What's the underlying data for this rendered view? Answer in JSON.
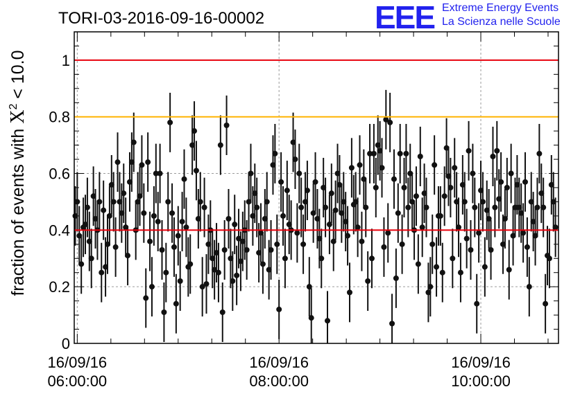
{
  "logo": {
    "mark": "EEE",
    "line1": "Extreme Energy Events",
    "line2": "La Scienza nelle Scuole"
  },
  "chart_data": {
    "type": "scatter",
    "title": "TORI-03-2016-09-16-00002",
    "ylabel": "fraction of events with X² < 10.0",
    "ylabel_parts": {
      "pre": "fraction of events with ",
      "sym": "X",
      "sup": "2",
      "post": " < 10.0"
    },
    "xlabel": "",
    "x_range_hours": [
      5.97,
      10.77
    ],
    "ylim": [
      0,
      1.1
    ],
    "y_ticks": [
      0,
      0.2,
      0.4,
      0.6,
      0.8,
      1
    ],
    "y_tick_labels": [
      "0",
      "0.2",
      "0.4",
      "0.6",
      "0.8",
      "1"
    ],
    "x_ticks": [
      {
        "hour": 6,
        "date": "16/09/16",
        "time": "06:00:00"
      },
      {
        "hour": 8,
        "date": "16/09/16",
        "time": "08:00:00"
      },
      {
        "hour": 10,
        "date": "16/09/16",
        "time": "10:00:00"
      }
    ],
    "grid": true,
    "reference_lines": [
      {
        "y": 1.0,
        "color": "#e8000b"
      },
      {
        "y": 0.8,
        "color": "#ffb300"
      },
      {
        "y": 0.4,
        "color": "#e8000b"
      }
    ],
    "series": [
      {
        "marker": "circle",
        "color": "#111111",
        "error_bar": 0.105,
        "points": [
          [
            5.98,
            0.45
          ],
          [
            6.0,
            0.5
          ],
          [
            6.02,
            0.38
          ],
          [
            6.04,
            0.28
          ],
          [
            6.06,
            0.41
          ],
          [
            6.08,
            0.42
          ],
          [
            6.1,
            0.48
          ],
          [
            6.12,
            0.36
          ],
          [
            6.14,
            0.3
          ],
          [
            6.16,
            0.52
          ],
          [
            6.18,
            0.44
          ],
          [
            6.2,
            0.4
          ],
          [
            6.22,
            0.5
          ],
          [
            6.24,
            0.25
          ],
          [
            6.26,
            0.47
          ],
          [
            6.28,
            0.27
          ],
          [
            6.3,
            0.35
          ],
          [
            6.32,
            0.45
          ],
          [
            6.34,
            0.56
          ],
          [
            6.36,
            0.5
          ],
          [
            6.38,
            0.34
          ],
          [
            6.4,
            0.64
          ],
          [
            6.42,
            0.5
          ],
          [
            6.44,
            0.46
          ],
          [
            6.46,
            0.53
          ],
          [
            6.48,
            0.41
          ],
          [
            6.5,
            0.31
          ],
          [
            6.52,
            0.57
          ],
          [
            6.54,
            0.64
          ],
          [
            6.56,
            0.71
          ],
          [
            6.58,
            0.4
          ],
          [
            6.6,
            0.5
          ],
          [
            6.62,
            0.52
          ],
          [
            6.64,
            0.63
          ],
          [
            6.66,
            0.46
          ],
          [
            6.68,
            0.16
          ],
          [
            6.7,
            0.64
          ],
          [
            6.72,
            0.36
          ],
          [
            6.74,
            0.2
          ],
          [
            6.76,
            0.45
          ],
          [
            6.78,
            0.6
          ],
          [
            6.8,
            0.43
          ],
          [
            6.82,
            0.6
          ],
          [
            6.84,
            0.33
          ],
          [
            6.86,
            0.11
          ],
          [
            6.88,
            0.25
          ],
          [
            6.9,
            0.5
          ],
          [
            6.92,
            0.78
          ],
          [
            6.94,
            0.46
          ],
          [
            6.96,
            0.34
          ],
          [
            6.98,
            0.14
          ],
          [
            7.0,
            0.38
          ],
          [
            7.02,
            0.22
          ],
          [
            7.04,
            0.43
          ],
          [
            7.06,
            0.58
          ],
          [
            7.08,
            0.41
          ],
          [
            7.1,
            0.27
          ],
          [
            7.12,
            0.28
          ],
          [
            7.14,
            0.7
          ],
          [
            7.16,
            0.75
          ],
          [
            7.18,
            0.61
          ],
          [
            7.2,
            0.44
          ],
          [
            7.22,
            0.5
          ],
          [
            7.24,
            0.2
          ],
          [
            7.26,
            0.48
          ],
          [
            7.28,
            0.21
          ],
          [
            7.3,
            0.35
          ],
          [
            7.32,
            0.4
          ],
          [
            7.34,
            0.3
          ],
          [
            7.36,
            0.26
          ],
          [
            7.38,
            0.32
          ],
          [
            7.4,
            0.25
          ],
          [
            7.42,
            0.7
          ],
          [
            7.44,
            0.11
          ],
          [
            7.46,
            0.33
          ],
          [
            7.48,
            0.77
          ],
          [
            7.5,
            0.44
          ],
          [
            7.52,
            0.3
          ],
          [
            7.54,
            0.22
          ],
          [
            7.56,
            0.42
          ],
          [
            7.58,
            0.24
          ],
          [
            7.6,
            0.37
          ],
          [
            7.62,
            0.29
          ],
          [
            7.64,
            0.36
          ],
          [
            7.66,
            0.4
          ],
          [
            7.68,
            0.33
          ],
          [
            7.7,
            0.5
          ],
          [
            7.72,
            0.6
          ],
          [
            7.74,
            0.45
          ],
          [
            7.76,
            0.53
          ],
          [
            7.78,
            0.48
          ],
          [
            7.8,
            0.32
          ],
          [
            7.82,
            0.39
          ],
          [
            7.84,
            0.28
          ],
          [
            7.86,
            0.44
          ],
          [
            7.88,
            0.5
          ],
          [
            7.9,
            0.26
          ],
          [
            7.92,
            0.33
          ],
          [
            7.94,
            0.63
          ],
          [
            7.96,
            0.67
          ],
          [
            7.98,
            0.35
          ],
          [
            8.0,
            0.12
          ],
          [
            8.02,
            0.57
          ],
          [
            8.04,
            0.45
          ],
          [
            8.06,
            0.3
          ],
          [
            8.08,
            0.54
          ],
          [
            8.1,
            0.42
          ],
          [
            8.12,
            0.4
          ],
          [
            8.14,
            0.71
          ],
          [
            8.16,
            0.65
          ],
          [
            8.18,
            0.39
          ],
          [
            8.2,
            0.6
          ],
          [
            8.22,
            0.48
          ],
          [
            8.24,
            0.35
          ],
          [
            8.26,
            0.5
          ],
          [
            8.28,
            0.54
          ],
          [
            8.3,
            0.2
          ],
          [
            8.32,
            0.09
          ],
          [
            8.34,
            0.46
          ],
          [
            8.36,
            0.57
          ],
          [
            8.38,
            0.44
          ],
          [
            8.4,
            0.37
          ],
          [
            8.42,
            0.3
          ],
          [
            8.44,
            0.55
          ],
          [
            8.46,
            0.48
          ],
          [
            8.48,
            0.08
          ],
          [
            8.5,
            0.42
          ],
          [
            8.52,
            0.53
          ],
          [
            8.54,
            0.36
          ],
          [
            8.56,
            0.47
          ],
          [
            8.58,
            0.6
          ],
          [
            8.6,
            0.56
          ],
          [
            8.62,
            0.46
          ],
          [
            8.64,
            0.5
          ],
          [
            8.66,
            0.43
          ],
          [
            8.68,
            0.38
          ],
          [
            8.7,
            0.18
          ],
          [
            8.72,
            0.62
          ],
          [
            8.74,
            0.49
          ],
          [
            8.76,
            0.5
          ],
          [
            8.78,
            0.41
          ],
          [
            8.8,
            0.63
          ],
          [
            8.82,
            0.36
          ],
          [
            8.84,
            0.58
          ],
          [
            8.86,
            0.48
          ],
          [
            8.88,
            0.22
          ],
          [
            8.9,
            0.67
          ],
          [
            8.92,
            0.3
          ],
          [
            8.94,
            0.67
          ],
          [
            8.96,
            0.55
          ],
          [
            8.98,
            0.7
          ],
          [
            9.0,
            0.68
          ],
          [
            9.02,
            0.62
          ],
          [
            9.04,
            0.34
          ],
          [
            9.06,
            0.79
          ],
          [
            9.08,
            0.39
          ],
          [
            9.1,
            0.78
          ],
          [
            9.12,
            0.07
          ],
          [
            9.14,
            0.58
          ],
          [
            9.16,
            0.23
          ],
          [
            9.18,
            0.46
          ],
          [
            9.2,
            0.67
          ],
          [
            9.22,
            0.35
          ],
          [
            9.24,
            0.55
          ],
          [
            9.26,
            0.67
          ],
          [
            9.28,
            0.48
          ],
          [
            9.3,
            0.6
          ],
          [
            9.32,
            0.5
          ],
          [
            9.34,
            0.4
          ],
          [
            9.36,
            0.52
          ],
          [
            9.38,
            0.28
          ],
          [
            9.4,
            0.66
          ],
          [
            9.42,
            0.41
          ],
          [
            9.44,
            0.53
          ],
          [
            9.46,
            0.48
          ],
          [
            9.48,
            0.18
          ],
          [
            9.5,
            0.2
          ],
          [
            9.52,
            0.35
          ],
          [
            9.54,
            0.63
          ],
          [
            9.56,
            0.27
          ],
          [
            9.58,
            0.45
          ],
          [
            9.6,
            0.45
          ],
          [
            9.62,
            0.25
          ],
          [
            9.64,
            0.52
          ],
          [
            9.66,
            0.69
          ],
          [
            9.68,
            0.59
          ],
          [
            9.7,
            0.55
          ],
          [
            9.72,
            0.3
          ],
          [
            9.74,
            0.62
          ],
          [
            9.76,
            0.5
          ],
          [
            9.78,
            0.41
          ],
          [
            9.8,
            0.25
          ],
          [
            9.82,
            0.56
          ],
          [
            9.84,
            0.5
          ],
          [
            9.86,
            0.37
          ],
          [
            9.88,
            0.68
          ],
          [
            9.9,
            0.33
          ],
          [
            9.92,
            0.6
          ],
          [
            9.94,
            0.48
          ],
          [
            9.96,
            0.14
          ],
          [
            9.98,
            0.39
          ],
          [
            10.0,
            0.54
          ],
          [
            10.02,
            0.5
          ],
          [
            10.04,
            0.27
          ],
          [
            10.06,
            0.47
          ],
          [
            10.08,
            0.44
          ],
          [
            10.1,
            0.33
          ],
          [
            10.12,
            0.66
          ],
          [
            10.14,
            0.48
          ],
          [
            10.16,
            0.68
          ],
          [
            10.18,
            0.51
          ],
          [
            10.2,
            0.57
          ],
          [
            10.22,
            0.35
          ],
          [
            10.24,
            0.44
          ],
          [
            10.26,
            0.55
          ],
          [
            10.28,
            0.26
          ],
          [
            10.3,
            0.6
          ],
          [
            10.32,
            0.38
          ],
          [
            10.34,
            0.48
          ],
          [
            10.36,
            0.56
          ],
          [
            10.38,
            0.48
          ],
          [
            10.4,
            0.46
          ],
          [
            10.42,
            0.39
          ],
          [
            10.44,
            0.57
          ],
          [
            10.46,
            0.34
          ],
          [
            10.48,
            0.2
          ],
          [
            10.5,
            0.5
          ],
          [
            10.52,
            0.43
          ],
          [
            10.54,
            0.38
          ],
          [
            10.56,
            0.48
          ],
          [
            10.58,
            0.67
          ],
          [
            10.6,
            0.53
          ],
          [
            10.62,
            0.48
          ],
          [
            10.64,
            0.14
          ],
          [
            10.66,
            0.31
          ],
          [
            10.68,
            0.3
          ],
          [
            10.7,
            0.56
          ],
          [
            10.72,
            0.5
          ],
          [
            10.74,
            0.41
          ]
        ]
      }
    ]
  }
}
